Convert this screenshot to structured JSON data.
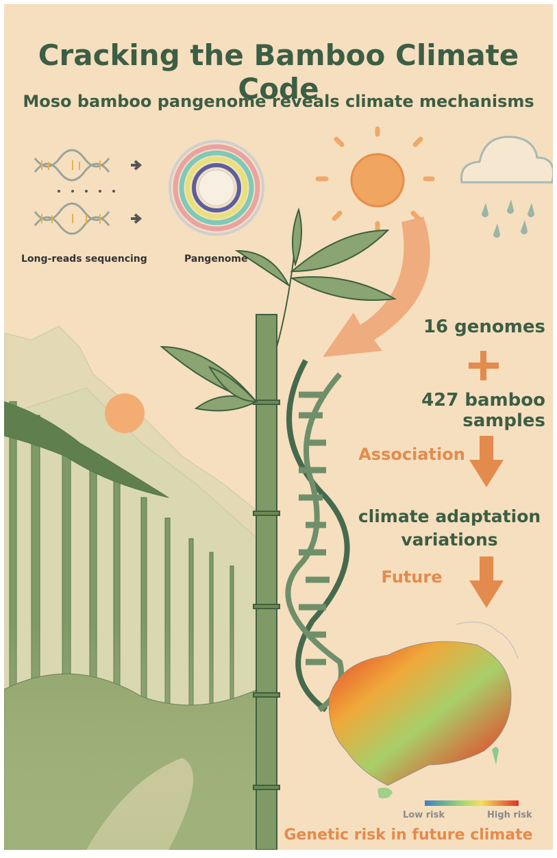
{
  "header": {
    "title": "Cracking the Bamboo Climate Code",
    "subtitle": "Moso bamboo pangenome reveals climate mechanisms"
  },
  "panels": {
    "sequencing_label": "Long-reads sequencing",
    "pangenome_label": "Pangenome"
  },
  "flow": {
    "genomes": "16 genomes",
    "samples": "427 bamboo samples",
    "association": "Association",
    "result": "climate adaptation variations",
    "future": "Future"
  },
  "map": {
    "low": "Low risk",
    "high": "High risk",
    "caption": "Genetic risk in future climate"
  }
}
